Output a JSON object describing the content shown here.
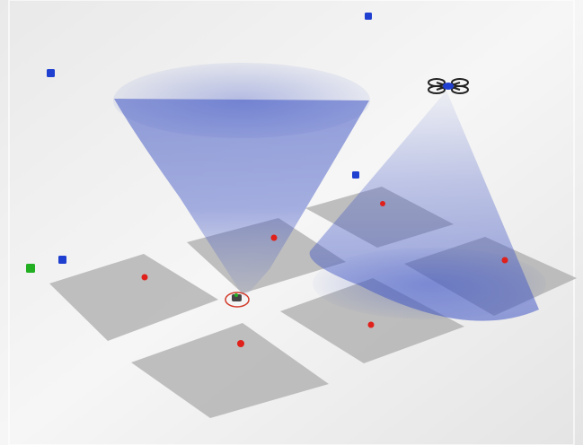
{
  "scene": {
    "colors": {
      "floor_light": "#f4f4f4",
      "floor_dark": "#dedede",
      "tile": "#a9a9a9",
      "cone": "#3f55c4",
      "marker_red": "#e0201a",
      "marker_blue": "#1f3fd0",
      "marker_green": "#22b022",
      "ring": "#d23a2a",
      "drone_frame": "#222222",
      "drone_body": "#1f3fd0",
      "robot_body": "#444444"
    },
    "tiles": [
      {
        "name": "tile-front-left"
      },
      {
        "name": "tile-center"
      },
      {
        "name": "tile-back-right"
      },
      {
        "name": "tile-right"
      },
      {
        "name": "tile-center-right"
      },
      {
        "name": "tile-front"
      }
    ],
    "cones": [
      {
        "name": "sensor-cone-left"
      },
      {
        "name": "sensor-cone-drone"
      }
    ],
    "markers": [
      {
        "name": "blue-marker-top",
        "color": "blue"
      },
      {
        "name": "blue-marker-upper-left",
        "color": "blue"
      },
      {
        "name": "blue-marker-middle",
        "color": "blue"
      },
      {
        "name": "blue-marker-left",
        "color": "blue"
      },
      {
        "name": "green-marker-left",
        "color": "green"
      },
      {
        "name": "red-marker-tile-front-left",
        "color": "red"
      },
      {
        "name": "red-marker-tile-center",
        "color": "red"
      },
      {
        "name": "red-marker-tile-back-right",
        "color": "red"
      },
      {
        "name": "red-marker-tile-right",
        "color": "red"
      },
      {
        "name": "red-marker-tile-center-right",
        "color": "red"
      },
      {
        "name": "red-marker-tile-front",
        "color": "red"
      }
    ],
    "drone": {
      "name": "quadcopter-drone"
    },
    "robot": {
      "name": "ground-robot"
    }
  }
}
